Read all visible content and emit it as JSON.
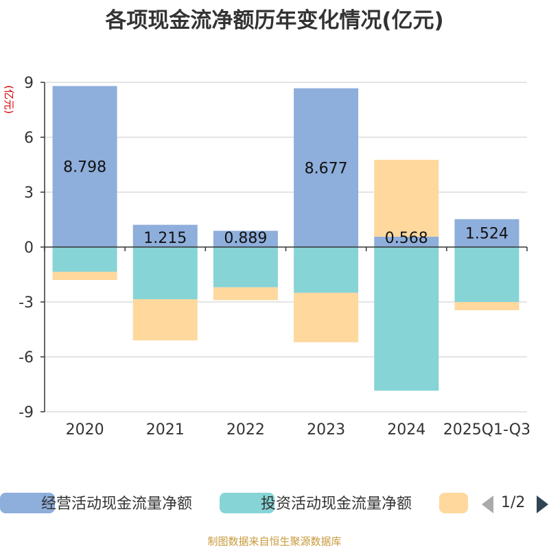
{
  "title": "各项现金流净额历年变化情况(亿元)",
  "source": "制图数据来自恒生聚源数据库",
  "legend": {
    "items": [
      {
        "label": "经营活动现金流量净额",
        "color": "#8eaedb"
      },
      {
        "label": "投资活动现金流量净额",
        "color": "#86d4d6"
      },
      {
        "label": "",
        "color": "#fed89d"
      }
    ],
    "pager": "1/2"
  },
  "chart_data": {
    "type": "bar",
    "stacked": true,
    "categories": [
      "2020",
      "2021",
      "2022",
      "2023",
      "2024",
      "2025Q1-Q3"
    ],
    "ylabel": "(亿元)",
    "ylim": [
      -9,
      9
    ],
    "yticks": [
      9,
      6,
      3,
      0,
      -3,
      -6,
      -9
    ],
    "grid": true,
    "series": [
      {
        "name": "经营活动现金流量净额",
        "color": "#8eaedb",
        "values": [
          8.798,
          1.215,
          0.889,
          8.677,
          0.568,
          1.524
        ],
        "labels": [
          "8.798",
          "1.215",
          "0.889",
          "8.677",
          "0.568",
          "1.524"
        ]
      },
      {
        "name": "投资活动现金流量净额",
        "color": "#86d4d6",
        "values": [
          -1.35,
          -2.85,
          -2.2,
          -2.5,
          -7.85,
          -3.0
        ]
      },
      {
        "color": "#fed89d",
        "values": [
          -0.45,
          -2.25,
          -0.7,
          -2.7,
          4.2,
          -0.45
        ]
      }
    ]
  }
}
